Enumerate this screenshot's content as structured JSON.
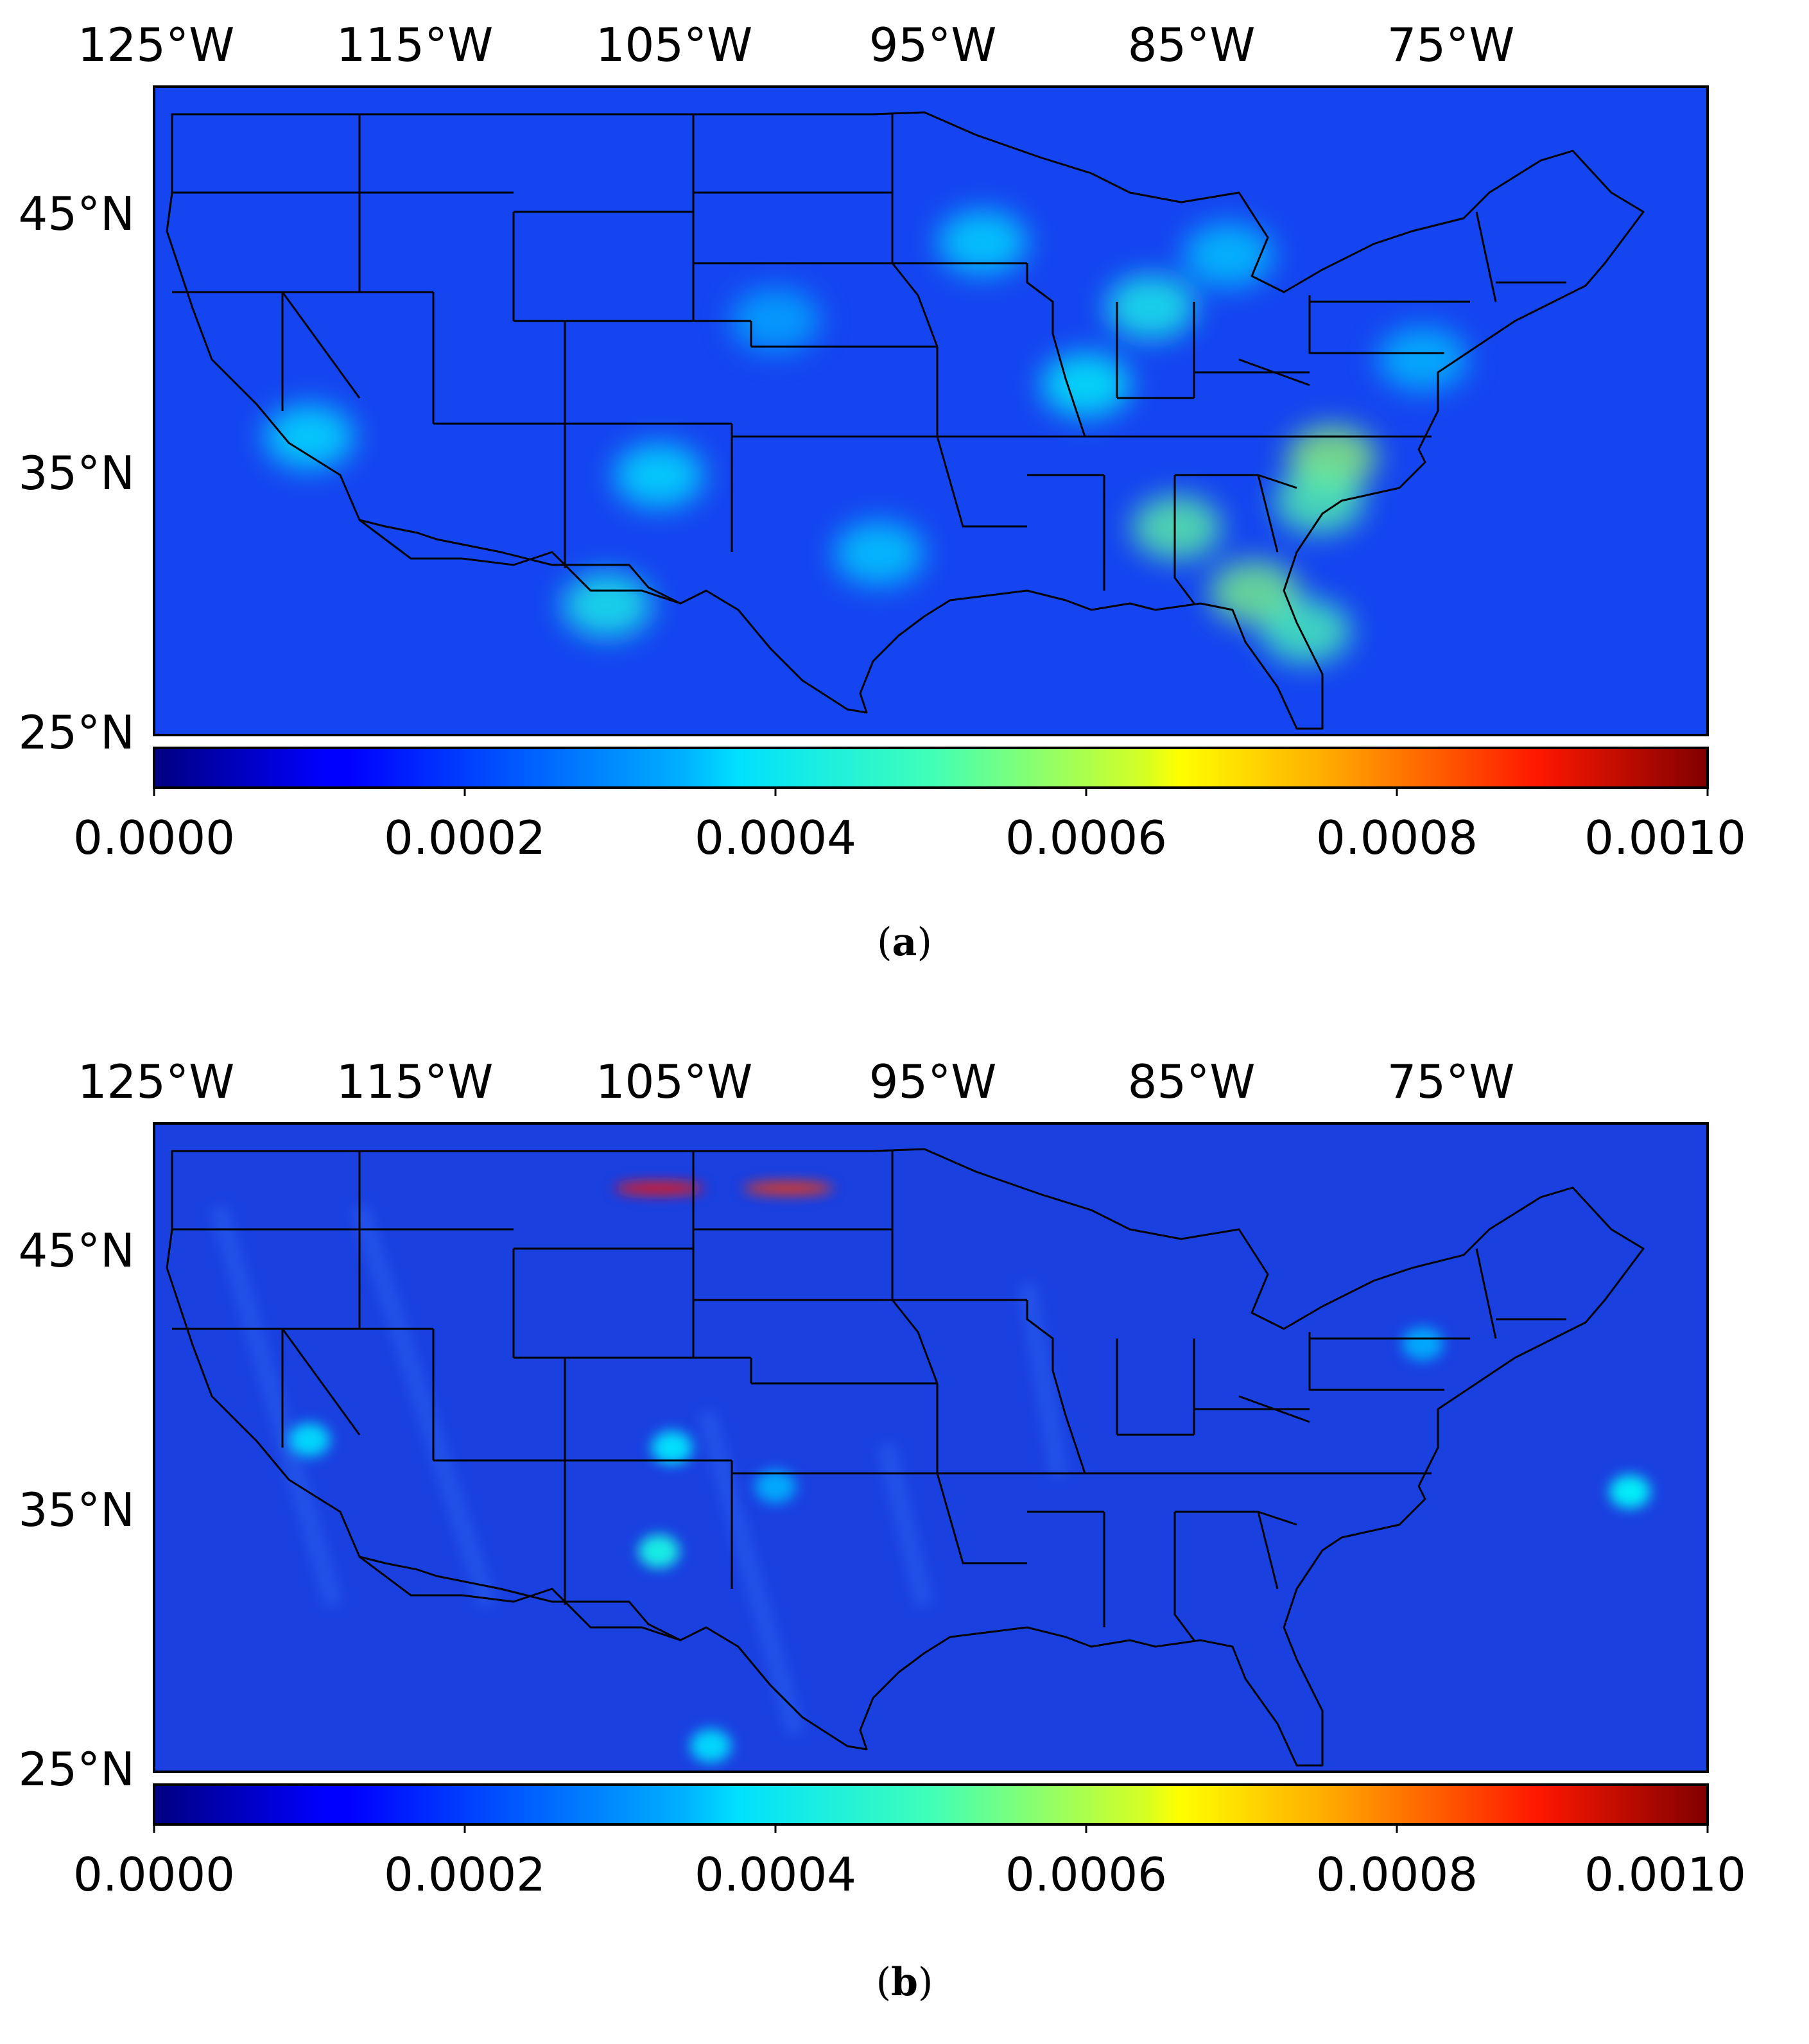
{
  "panels": [
    {
      "label": "a",
      "caption_open": "(",
      "caption_close": ")",
      "lon_ticks": [
        "125°W",
        "115°W",
        "105°W",
        "95°W",
        "85°W",
        "75°W"
      ],
      "lat_ticks": [
        "45°N",
        "35°N",
        "25°N"
      ],
      "colorbar": {
        "colormap": "jet",
        "range": [
          0.0,
          0.001
        ],
        "tick_labels": [
          "0.0000",
          "0.0002",
          "0.0004",
          "0.0006",
          "0.0008",
          "0.0010"
        ]
      },
      "map_extent": {
        "lon": [
          -126,
          -66
        ],
        "lat": [
          25,
          50
        ]
      },
      "background_color": "#1545f0",
      "hotspots": [
        {
          "lon": -80.5,
          "lat": 35.7,
          "level": 0.00052
        },
        {
          "lon": -86.5,
          "lat": 33.0,
          "level": 0.00047
        },
        {
          "lon": -83.5,
          "lat": 30.5,
          "level": 0.0005
        },
        {
          "lon": -81.5,
          "lat": 29.0,
          "level": 0.00045
        },
        {
          "lon": -81.0,
          "lat": 34.0,
          "level": 0.00046
        },
        {
          "lon": -87.5,
          "lat": 41.5,
          "level": 0.0004
        },
        {
          "lon": -90.0,
          "lat": 38.5,
          "level": 0.00038
        },
        {
          "lon": -108.5,
          "lat": 30.0,
          "level": 0.0004
        },
        {
          "lon": -106.5,
          "lat": 35.0,
          "level": 0.00036
        },
        {
          "lon": -120.0,
          "lat": 36.5,
          "level": 0.00036
        },
        {
          "lon": -98.0,
          "lat": 32.0,
          "level": 0.00034
        },
        {
          "lon": -94.0,
          "lat": 44.0,
          "level": 0.00035
        },
        {
          "lon": -84.5,
          "lat": 43.5,
          "level": 0.00033
        },
        {
          "lon": -102.0,
          "lat": 41.0,
          "level": 0.0003
        },
        {
          "lon": -77.0,
          "lat": 39.5,
          "level": 0.00032
        }
      ]
    },
    {
      "label": "b",
      "caption_open": "(",
      "caption_close": ")",
      "lon_ticks": [
        "125°W",
        "115°W",
        "105°W",
        "95°W",
        "85°W",
        "75°W"
      ],
      "lat_ticks": [
        "45°N",
        "35°N",
        "25°N"
      ],
      "colorbar": {
        "colormap": "jet",
        "range": [
          0.0,
          0.001
        ],
        "tick_labels": [
          "0.0000",
          "0.0002",
          "0.0004",
          "0.0006",
          "0.0008",
          "0.0010"
        ]
      },
      "map_extent": {
        "lon": [
          -126,
          -66
        ],
        "lat": [
          25,
          50
        ]
      },
      "background_color": "#1a40e0",
      "hotspots": [
        {
          "lon": -106.5,
          "lat": 47.5,
          "level": 0.00085
        },
        {
          "lon": -101.5,
          "lat": 47.5,
          "level": 0.00082
        },
        {
          "lon": -106.5,
          "lat": 33.5,
          "level": 0.0004
        },
        {
          "lon": -106.0,
          "lat": 37.5,
          "level": 0.00036
        },
        {
          "lon": -120.0,
          "lat": 37.8,
          "level": 0.00035
        },
        {
          "lon": -77.0,
          "lat": 41.5,
          "level": 0.0003
        },
        {
          "lon": -104.5,
          "lat": 26.0,
          "level": 0.00035
        },
        {
          "lon": -102.0,
          "lat": 36.0,
          "level": 0.0003
        },
        {
          "lon": -69.0,
          "lat": 35.8,
          "level": 0.00038
        }
      ]
    }
  ],
  "map_border_color": "#000000"
}
